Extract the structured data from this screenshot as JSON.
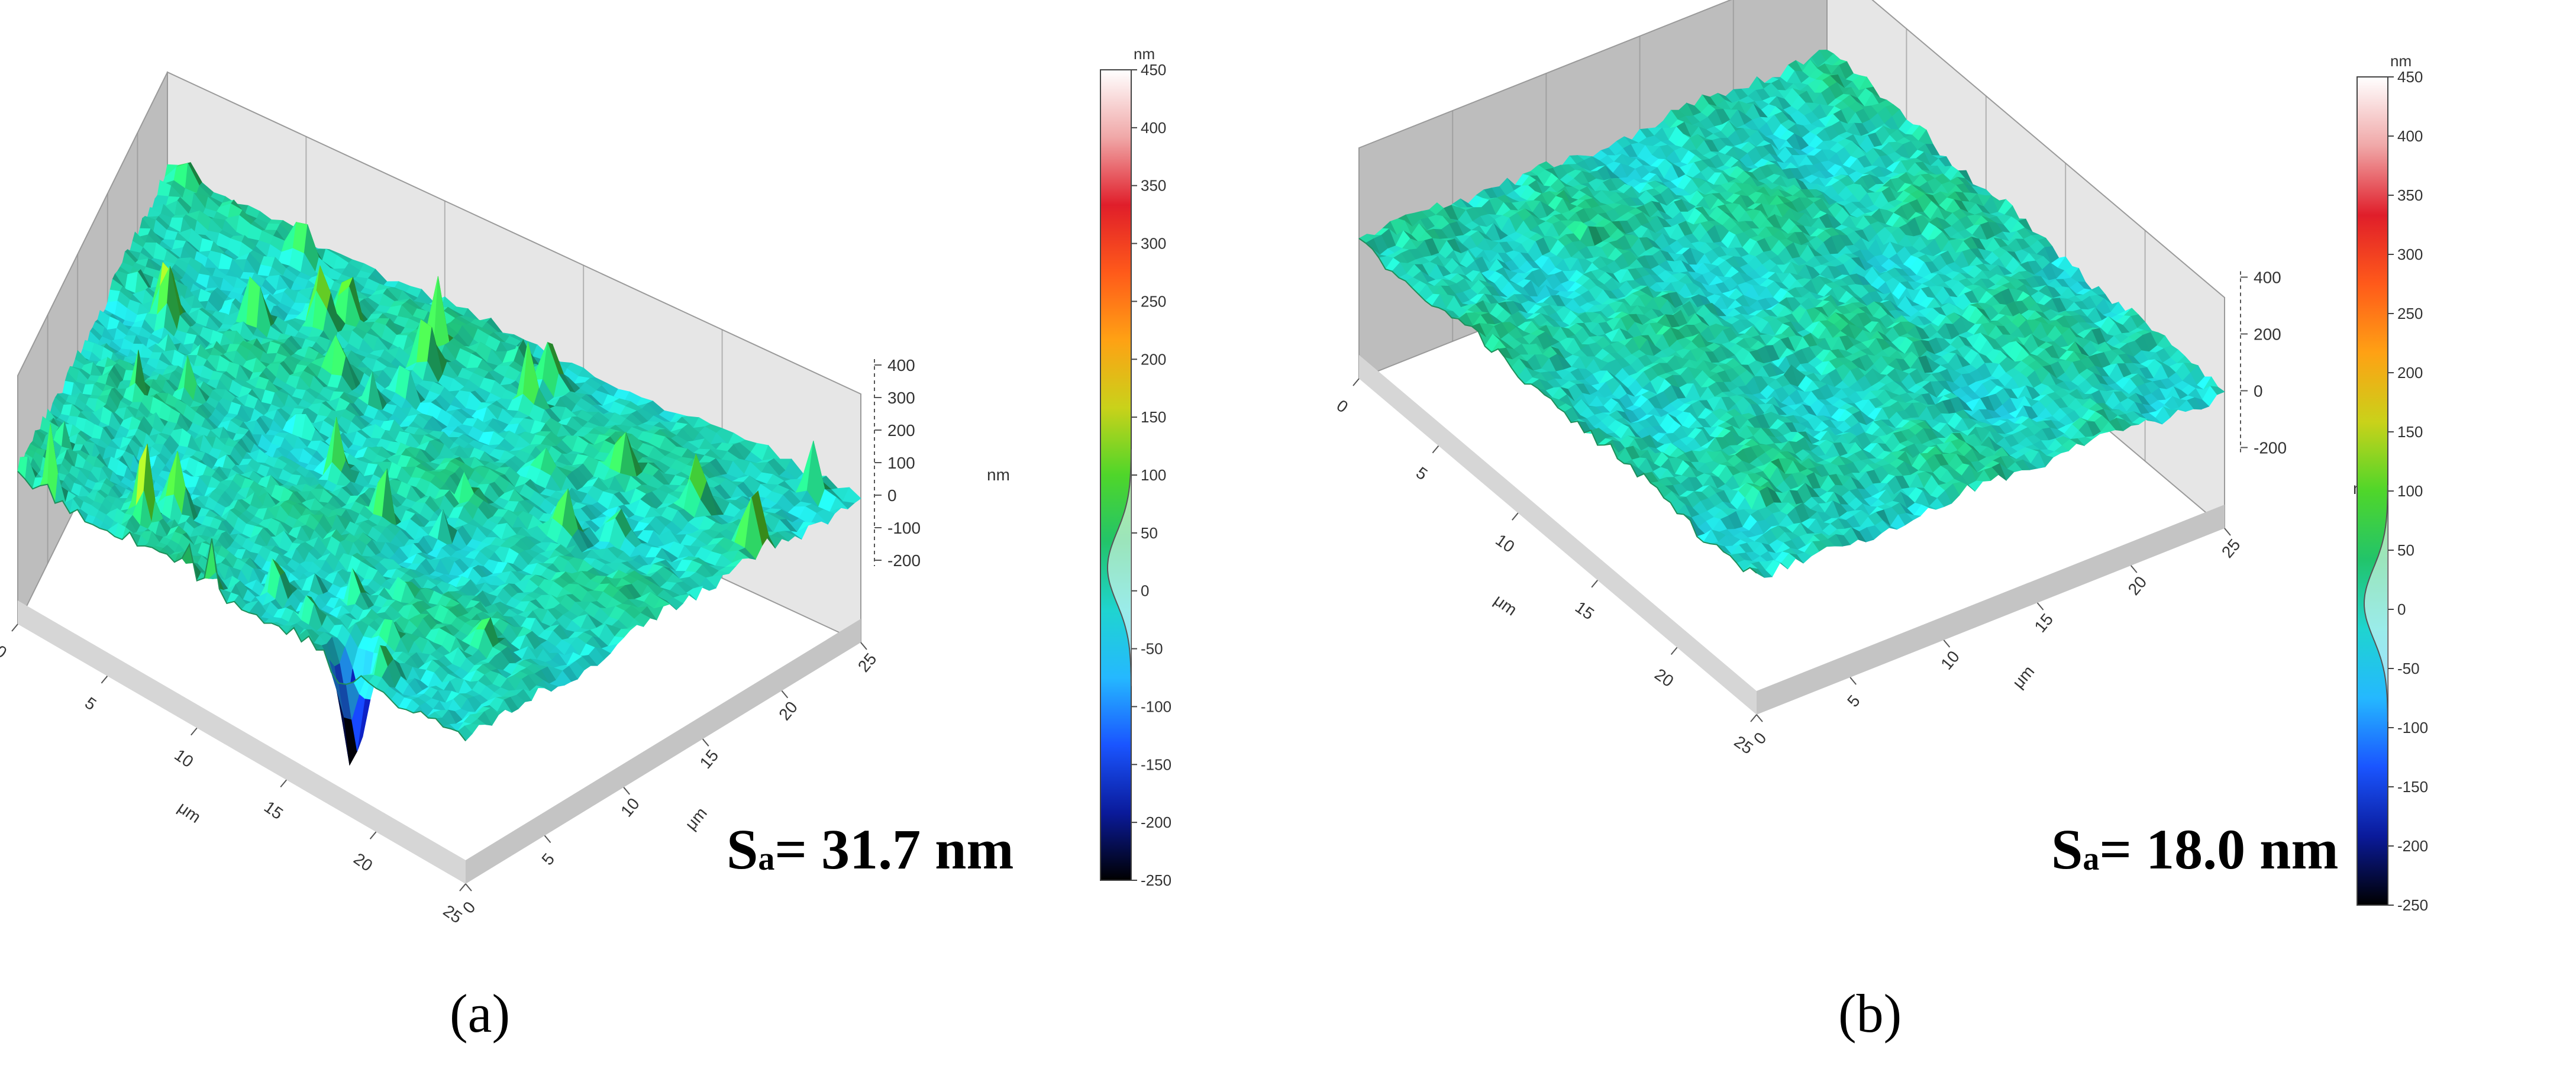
{
  "chart_data": [
    {
      "type": "surface",
      "panel_label": "(a)",
      "sa_prefix": "S",
      "sa_subscript": "a",
      "sa_value": "= 31.7 nm",
      "z_unit": "nm",
      "xy_unit": "μm",
      "z_ticks": [
        "400",
        "300",
        "200",
        "100",
        "0",
        "-100",
        "-200"
      ],
      "x_ticks": [
        "0",
        "5",
        "10",
        "15",
        "20",
        "25"
      ],
      "y_ticks": [
        "0",
        "5",
        "10",
        "15",
        "20",
        "25"
      ],
      "colorbar_unit": "nm",
      "colorbar_ticks": [
        "450",
        "400",
        "350",
        "300",
        "250",
        "200",
        "150",
        "100",
        "50",
        "0",
        "-50",
        "-100",
        "-150",
        "-200",
        "-250"
      ],
      "colorbar_range": [
        -250,
        450
      ],
      "height_histogram_peak": 20
    },
    {
      "type": "surface",
      "panel_label": "(b)",
      "sa_prefix": "S",
      "sa_subscript": "a",
      "sa_value": "= 18.0 nm",
      "z_unit": "nm",
      "xy_unit": "μm",
      "z_ticks": [
        "400",
        "200",
        "0",
        "-200"
      ],
      "x_ticks": [
        "0",
        "5",
        "10",
        "15",
        "20",
        "25"
      ],
      "y_ticks": [
        "0",
        "5",
        "10",
        "15",
        "20",
        "25"
      ],
      "colorbar_unit": "nm",
      "colorbar_ticks": [
        "450",
        "400",
        "350",
        "300",
        "250",
        "200",
        "150",
        "100",
        "50",
        "0",
        "-50",
        "-100",
        "-150",
        "-200",
        "-250"
      ],
      "colorbar_range": [
        -250,
        450
      ],
      "height_histogram_peak": 5
    }
  ],
  "colors": {
    "colormap": [
      "#000000",
      "#0a1a9a",
      "#1a55ff",
      "#25b8ff",
      "#1fd4d0",
      "#22c46a",
      "#4fd62a",
      "#c9d21a",
      "#ffa114",
      "#ff5a1a",
      "#e01e2a",
      "#f0a8a8",
      "#ffffff"
    ],
    "wall": "#cfcfcf",
    "floor": "#dcdcdc"
  }
}
